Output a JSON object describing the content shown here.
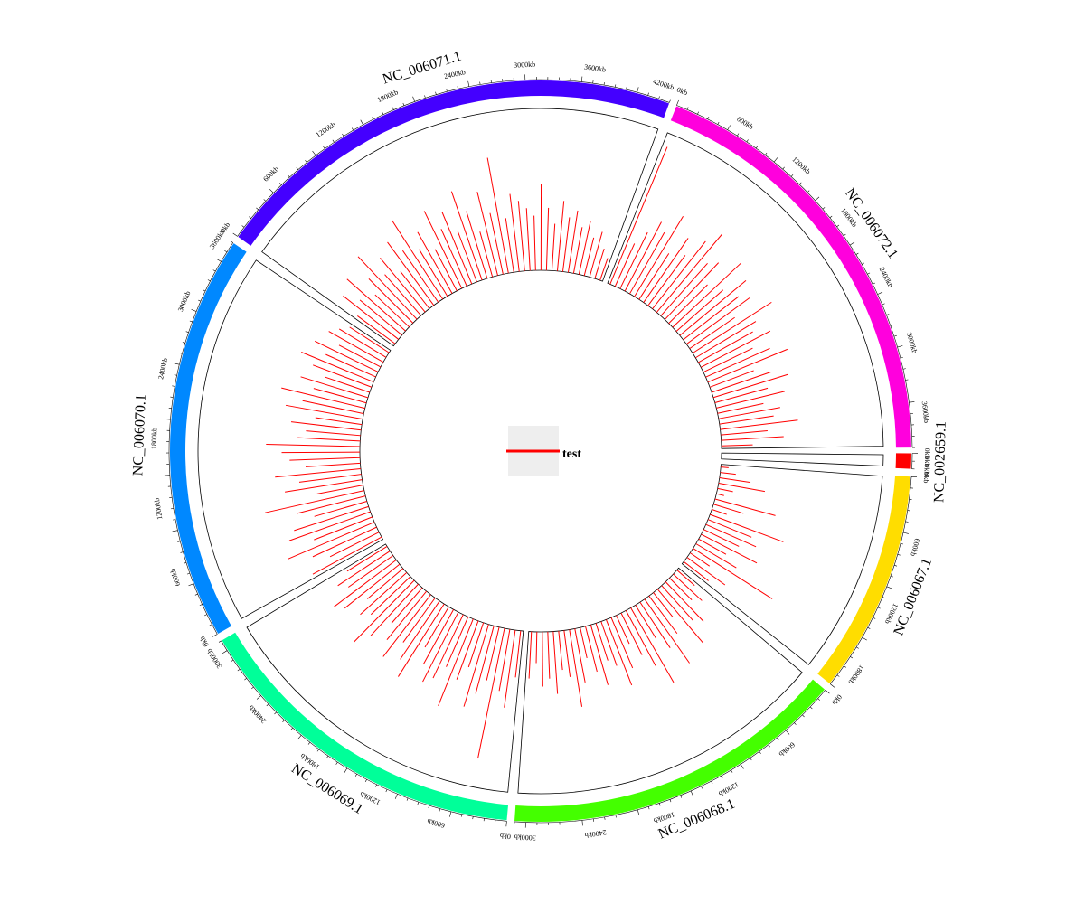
{
  "chart_data": {
    "type": "circos",
    "track_colors": {
      "hist": "#ff0000"
    },
    "chromosomes": [
      {
        "name": "NC_002659.1",
        "length": 60,
        "color": "#ff0000",
        "ticks": [
          "0kb",
          "0kb",
          "0kb"
        ]
      },
      {
        "name": "NC_006067.1",
        "length": 2000,
        "color": "#ffdd00",
        "ticks": [
          "0kb",
          "600kb",
          "1200kb",
          "1800kb"
        ]
      },
      {
        "name": "NC_006068.1",
        "length": 3100,
        "color": "#44ff00",
        "ticks": [
          "0kb",
          "600kb",
          "1200kb",
          "1800kb",
          "2400kb",
          "3000kb"
        ]
      },
      {
        "name": "NC_006069.1",
        "length": 3100,
        "color": "#00ff99",
        "ticks": [
          "0kb",
          "600kb",
          "1200kb",
          "1800kb",
          "2400kb",
          "3000kb"
        ]
      },
      {
        "name": "NC_006070.1",
        "length": 3650,
        "color": "#0088ff",
        "ticks": [
          "0kb",
          "600kb",
          "1200kb",
          "1800kb",
          "2400kb",
          "3000kb",
          "3600kb"
        ]
      },
      {
        "name": "NC_006071.1",
        "length": 4300,
        "color": "#4400ff",
        "ticks": [
          "0kb",
          "600kb",
          "1200kb",
          "1800kb",
          "2400kb",
          "3000kb",
          "3600kb",
          "4200kb"
        ]
      },
      {
        "name": "NC_006072.1",
        "length": 3900,
        "color": "#ff00dd",
        "ticks": [
          "0kb",
          "600kb",
          "1200kb",
          "1800kb",
          "2400kb",
          "3000kb",
          "3600kb"
        ]
      }
    ],
    "histogram": {
      "series_name": "test",
      "bin_kb": 100,
      "y_range": [
        0,
        1
      ],
      "values": {
        "NC_002659.1": [],
        "NC_006067.1": [
          0.05,
          0.1,
          0.2,
          0.3,
          0.1,
          0.05,
          0.4,
          0.2,
          0.1,
          0.5,
          0.3,
          0.35,
          0.25,
          0.4,
          0.2,
          0.3,
          0.6,
          0.15,
          0.3,
          0.2
        ],
        "NC_006068.1": [
          0.15,
          0.25,
          0.2,
          0.35,
          0.3,
          0.45,
          0.2,
          0.3,
          0.5,
          0.35,
          0.25,
          0.55,
          0.4,
          0.3,
          0.2,
          0.35,
          0.45,
          0.3,
          0.25,
          0.4,
          0.3,
          0.2,
          0.35,
          0.5,
          0.3,
          0.25,
          0.4,
          0.3,
          0.35,
          0.2,
          0.3
        ],
        "NC_006069.1": [
          0.3,
          0.5,
          0.4,
          0.85,
          0.35,
          0.45,
          0.55,
          0.3,
          0.4,
          0.6,
          0.35,
          0.45,
          0.5,
          0.4,
          0.3,
          0.55,
          0.45,
          0.35,
          0.5,
          0.4,
          0.3,
          0.45,
          0.55,
          0.35,
          0.4,
          0.3,
          0.45,
          0.5,
          0.35,
          0.4,
          0.3
        ],
        "NC_006070.1": [
          0.5,
          0.35,
          0.45,
          0.6,
          0.4,
          0.55,
          0.5,
          0.35,
          0.45,
          0.65,
          0.3,
          0.5,
          0.4,
          0.55,
          0.35,
          0.45,
          0.5,
          0.6,
          0.4,
          0.35,
          0.45,
          0.3,
          0.5,
          0.4,
          0.55,
          0.35,
          0.45,
          0.3,
          0.4,
          0.5,
          0.35,
          0.45,
          0.3,
          0.4,
          0.35,
          0.3
        ],
        "NC_006071.1": [
          0.3,
          0.45,
          0.35,
          0.5,
          0.3,
          0.4,
          0.55,
          0.35,
          0.45,
          0.3,
          0.5,
          0.4,
          0.6,
          0.35,
          0.45,
          0.3,
          0.55,
          0.4,
          0.5,
          0.35,
          0.6,
          0.45,
          0.3,
          0.55,
          0.4,
          0.75,
          0.35,
          0.5,
          0.45,
          0.4,
          0.35,
          0.55,
          0.4,
          0.3,
          0.45,
          0.35,
          0.4,
          0.3,
          0.35,
          0.25,
          0.3,
          0.2,
          0.15
        ],
        "NC_006072.1": [
          0.95,
          0.3,
          0.4,
          0.5,
          0.45,
          0.6,
          0.35,
          0.5,
          0.4,
          0.55,
          0.65,
          0.45,
          0.5,
          0.35,
          0.6,
          0.4,
          0.55,
          0.45,
          0.5,
          0.35,
          0.6,
          0.45,
          0.4,
          0.5,
          0.35,
          0.45,
          0.55,
          0.3,
          0.4,
          0.5,
          0.35,
          0.45,
          0.3,
          0.4,
          0.35,
          0.5,
          0.3,
          0.4,
          0.2
        ]
      }
    },
    "legend": {
      "label": "test",
      "color": "#ff0000"
    }
  }
}
